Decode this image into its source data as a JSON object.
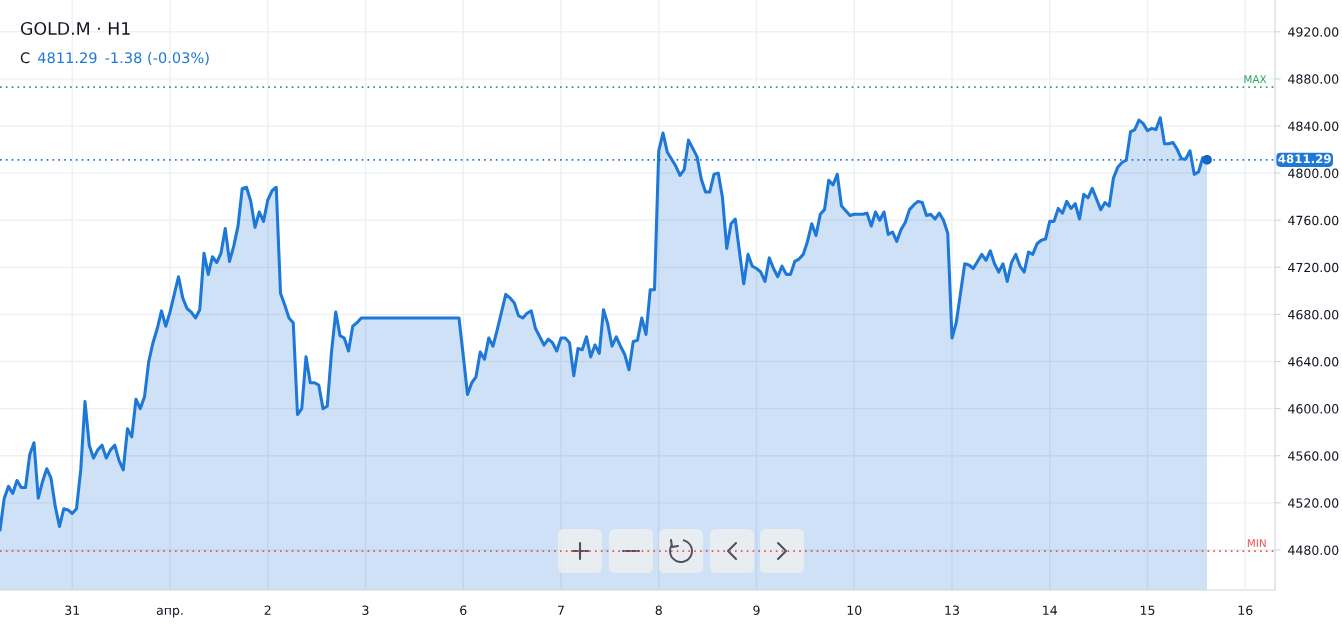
{
  "chart_data": {
    "type": "area",
    "title": "GOLD.M · H1",
    "annotations": [
      "C",
      "4811.29",
      "-1.38 (-0.03%)"
    ],
    "categories": [
      null,
      null,
      null,
      null,
      null,
      null,
      null,
      null,
      null,
      null,
      null,
      null,
      null,
      null,
      null,
      null,
      null,
      "31",
      null,
      null,
      null,
      null,
      null,
      null,
      null,
      null,
      null,
      null,
      null,
      null,
      null,
      null,
      null,
      null,
      null,
      null,
      null,
      null,
      null,
      null,
      "апр.",
      null,
      null,
      null,
      null,
      null,
      null,
      null,
      null,
      null,
      null,
      null,
      null,
      null,
      null,
      null,
      null,
      null,
      null,
      null,
      null,
      null,
      null,
      "2",
      null,
      null,
      null,
      null,
      null,
      null,
      null,
      null,
      null,
      null,
      null,
      null,
      null,
      null,
      null,
      null,
      null,
      null,
      null,
      null,
      null,
      null,
      "3",
      null,
      null,
      null,
      null,
      null,
      null,
      null,
      null,
      null,
      null,
      null,
      null,
      null,
      null,
      null,
      null,
      null,
      null,
      null,
      null,
      null,
      null,
      "6",
      null,
      null,
      null,
      null,
      null,
      null,
      null,
      null,
      null,
      null,
      null,
      null,
      null,
      null,
      null,
      null,
      null,
      null,
      null,
      null,
      null,
      null,
      "7",
      null,
      null,
      null,
      null,
      null,
      null,
      null,
      null,
      null,
      null,
      null,
      null,
      null,
      null,
      null,
      null,
      null,
      null,
      null,
      null,
      null,
      null,
      "8",
      null,
      null,
      null,
      null,
      null,
      null,
      null,
      null,
      null,
      null,
      null,
      null,
      null,
      null,
      null,
      null,
      null,
      null,
      null,
      null,
      null,
      null,
      "9",
      null,
      null,
      null,
      null,
      null,
      null,
      null,
      null,
      null,
      null,
      null,
      null,
      null,
      null,
      null,
      null,
      null,
      null,
      null,
      null,
      null,
      null,
      "10",
      null,
      null,
      null,
      null,
      null,
      null,
      null,
      null,
      null,
      null,
      null,
      null,
      null,
      null,
      null,
      null,
      null,
      null,
      null,
      null,
      null,
      null,
      "13",
      null,
      null,
      null,
      null,
      null,
      null,
      null,
      null,
      null,
      null,
      null,
      null,
      null,
      null,
      null,
      null,
      null,
      null,
      null,
      null,
      null,
      null,
      "14",
      null,
      null,
      null,
      null,
      null,
      null,
      null,
      null,
      null,
      null,
      null,
      null,
      null,
      null,
      null,
      null,
      null,
      null,
      null,
      null,
      null,
      null,
      "15",
      null,
      null,
      null,
      null,
      null,
      null,
      null,
      null,
      null,
      null,
      null,
      null,
      null,
      null,
      null,
      null,
      null,
      null,
      null,
      null,
      null,
      null,
      "16",
      null,
      null,
      null,
      null,
      null,
      null,
      null
    ],
    "ylim": [
      4446,
      4947
    ],
    "yticks": [
      {
        "value": 4480,
        "label": "4480.00"
      },
      {
        "value": 4520,
        "label": "4520.00"
      },
      {
        "value": 4560,
        "label": "4560.00"
      },
      {
        "value": 4600,
        "label": "4600.00"
      },
      {
        "value": 4640,
        "label": "4640.00"
      },
      {
        "value": 4680,
        "label": "4680.00"
      },
      {
        "value": 4720,
        "label": "4720.00"
      },
      {
        "value": 4760,
        "label": "4760.00"
      },
      {
        "value": 4800,
        "label": "4800.00"
      },
      {
        "value": 4840,
        "label": "4840.00"
      },
      {
        "value": 4880,
        "label": "4880.00"
      },
      {
        "value": 4920,
        "label": "4920.00"
      }
    ],
    "grid": true,
    "ref_lines": [
      {
        "axis": "y",
        "value": 4873,
        "label": "MAX",
        "color": "#26a65b",
        "line_style": "dotted"
      },
      {
        "axis": "y",
        "value": 4479,
        "label": "MIN",
        "color": "#ef5350",
        "line_style": "dotted"
      },
      {
        "axis": "y",
        "value": 4811.29,
        "label": "4811.29",
        "color": "#1e78d7",
        "line_style": "dotted"
      }
    ],
    "series": [
      {
        "color": "#1e78d7",
        "values": [
          4497,
          4524,
          4534,
          4528,
          4539,
          4533,
          4533,
          4561,
          4571,
          4524,
          4538,
          4549,
          4541,
          4517,
          4500,
          4515,
          4514,
          4511,
          4515,
          4548,
          4606,
          4569,
          4558,
          4565,
          4569,
          4558,
          4565,
          4569,
          4556,
          4548,
          4583,
          4576,
          4608,
          4600,
          4610,
          4640,
          4656,
          4668,
          4683,
          4670,
          4682,
          4697,
          4712,
          4694,
          4685,
          4682,
          4677,
          4684,
          4732,
          4714,
          4729,
          4724,
          4732,
          4753,
          4725,
          4738,
          4755,
          4787,
          4788,
          4776,
          4754,
          4767,
          4759,
          4777,
          4785,
          4788,
          4698,
          4688,
          4677,
          4673,
          4595,
          4600,
          4644,
          4622,
          4622,
          4620,
          4600,
          4602,
          4648,
          4682,
          4662,
          4660,
          4649,
          4670,
          4673,
          4677,
          4677,
          4677,
          4677,
          4677,
          4677,
          4677,
          4677,
          4677,
          4677,
          4677,
          4677,
          4677,
          4677,
          4677,
          4677,
          4677,
          4677,
          4677,
          4677,
          4677,
          4677,
          4677,
          4677,
          4645,
          4612,
          4622,
          4627,
          4648,
          4642,
          4660,
          4653,
          4667,
          4682,
          4697,
          4694,
          4690,
          4679,
          4677,
          4681,
          4683,
          4668,
          4661,
          4654,
          4659,
          4656,
          4649,
          4660,
          4660,
          4656,
          4628,
          4651,
          4650,
          4661,
          4644,
          4654,
          4647,
          4684,
          4672,
          4653,
          4661,
          4653,
          4646,
          4633,
          4657,
          4658,
          4677,
          4663,
          4701,
          4701,
          4819,
          4834,
          4818,
          4812,
          4806,
          4798,
          4803,
          4828,
          4821,
          4814,
          4795,
          4784,
          4784,
          4799,
          4800,
          4779,
          4736,
          4757,
          4761,
          4733,
          4706,
          4731,
          4721,
          4719,
          4716,
          4708,
          4728,
          4719,
          4712,
          4721,
          4714,
          4714,
          4725,
          4727,
          4731,
          4742,
          4757,
          4747,
          4765,
          4769,
          4794,
          4790,
          4799,
          4772,
          4768,
          4764,
          4765,
          4765,
          4765,
          4766,
          4755,
          4767,
          4760,
          4767,
          4748,
          4750,
          4742,
          4752,
          4758,
          4769,
          4773,
          4776,
          4775,
          4764,
          4765,
          4761,
          4766,
          4760,
          4749,
          4660,
          4673,
          4698,
          4723,
          4722,
          4719,
          4725,
          4731,
          4726,
          4734,
          4723,
          4716,
          4723,
          4708,
          4724,
          4731,
          4721,
          4716,
          4733,
          4731,
          4740,
          4743,
          4744,
          4759,
          4759,
          4770,
          4766,
          4776,
          4770,
          4774,
          4761,
          4782,
          4779,
          4787,
          4778,
          4769,
          4775,
          4772,
          4796,
          4805,
          4809,
          4811,
          4835,
          4837,
          4845,
          4842,
          4836,
          4838,
          4837,
          4847,
          4825,
          4825,
          4826,
          4820,
          4812,
          4812,
          4819,
          4799,
          4801,
          4813,
          4811.29,
          null,
          null,
          null,
          null,
          null,
          null,
          null,
          null,
          null,
          null,
          null,
          null,
          null,
          null,
          null,
          null
        ]
      },
      {
        "type": "scatter",
        "color": "#1666c4",
        "values": [
          null,
          null,
          null,
          null,
          null,
          null,
          null,
          null,
          null,
          null,
          null,
          null,
          null,
          null,
          null,
          null,
          null,
          null,
          null,
          null,
          null,
          null,
          null,
          null,
          null,
          null,
          null,
          null,
          null,
          null,
          null,
          null,
          null,
          null,
          null,
          null,
          null,
          null,
          null,
          null,
          null,
          null,
          null,
          null,
          null,
          null,
          null,
          null,
          null,
          null,
          null,
          null,
          null,
          null,
          null,
          null,
          null,
          null,
          null,
          null,
          null,
          null,
          null,
          null,
          null,
          null,
          null,
          null,
          null,
          null,
          null,
          null,
          null,
          null,
          null,
          null,
          null,
          null,
          null,
          null,
          null,
          null,
          null,
          null,
          null,
          null,
          null,
          null,
          null,
          null,
          null,
          null,
          null,
          null,
          null,
          null,
          null,
          null,
          null,
          null,
          null,
          null,
          null,
          null,
          null,
          null,
          null,
          null,
          null,
          null,
          null,
          null,
          null,
          null,
          null,
          null,
          null,
          null,
          null,
          null,
          null,
          null,
          null,
          null,
          null,
          null,
          null,
          null,
          null,
          null,
          null,
          null,
          null,
          null,
          null,
          null,
          null,
          null,
          null,
          null,
          null,
          null,
          null,
          null,
          null,
          null,
          null,
          null,
          null,
          null,
          null,
          null,
          null,
          null,
          null,
          null,
          null,
          null,
          null,
          null,
          null,
          null,
          null,
          null,
          null,
          null,
          null,
          null,
          null,
          null,
          null,
          null,
          null,
          null,
          null,
          null,
          null,
          null,
          null,
          null,
          null,
          null,
          null,
          null,
          null,
          null,
          null,
          null,
          null,
          null,
          null,
          null,
          null,
          null,
          null,
          null,
          null,
          null,
          null,
          null,
          null,
          null,
          null,
          null,
          null,
          null,
          null,
          null,
          null,
          null,
          null,
          null,
          null,
          null,
          null,
          null,
          null,
          null,
          null,
          null,
          null,
          null,
          null,
          null,
          null,
          null,
          null,
          null,
          null,
          null,
          null,
          null,
          null,
          null,
          null,
          null,
          null,
          null,
          null,
          null,
          null,
          null,
          null,
          null,
          null,
          null,
          null,
          null,
          null,
          null,
          null,
          null,
          null,
          null,
          null,
          null,
          null,
          null,
          null,
          null,
          null,
          null,
          null,
          null,
          null,
          null,
          null,
          null,
          null,
          null,
          null,
          null,
          null,
          null,
          null,
          null,
          null,
          null,
          null,
          null,
          null,
          null,
          null,
          null,
          4811.29,
          null,
          null,
          null,
          null,
          null,
          null,
          null,
          null,
          null,
          null,
          null,
          null,
          null,
          null,
          null,
          null
        ]
      }
    ]
  }
}
